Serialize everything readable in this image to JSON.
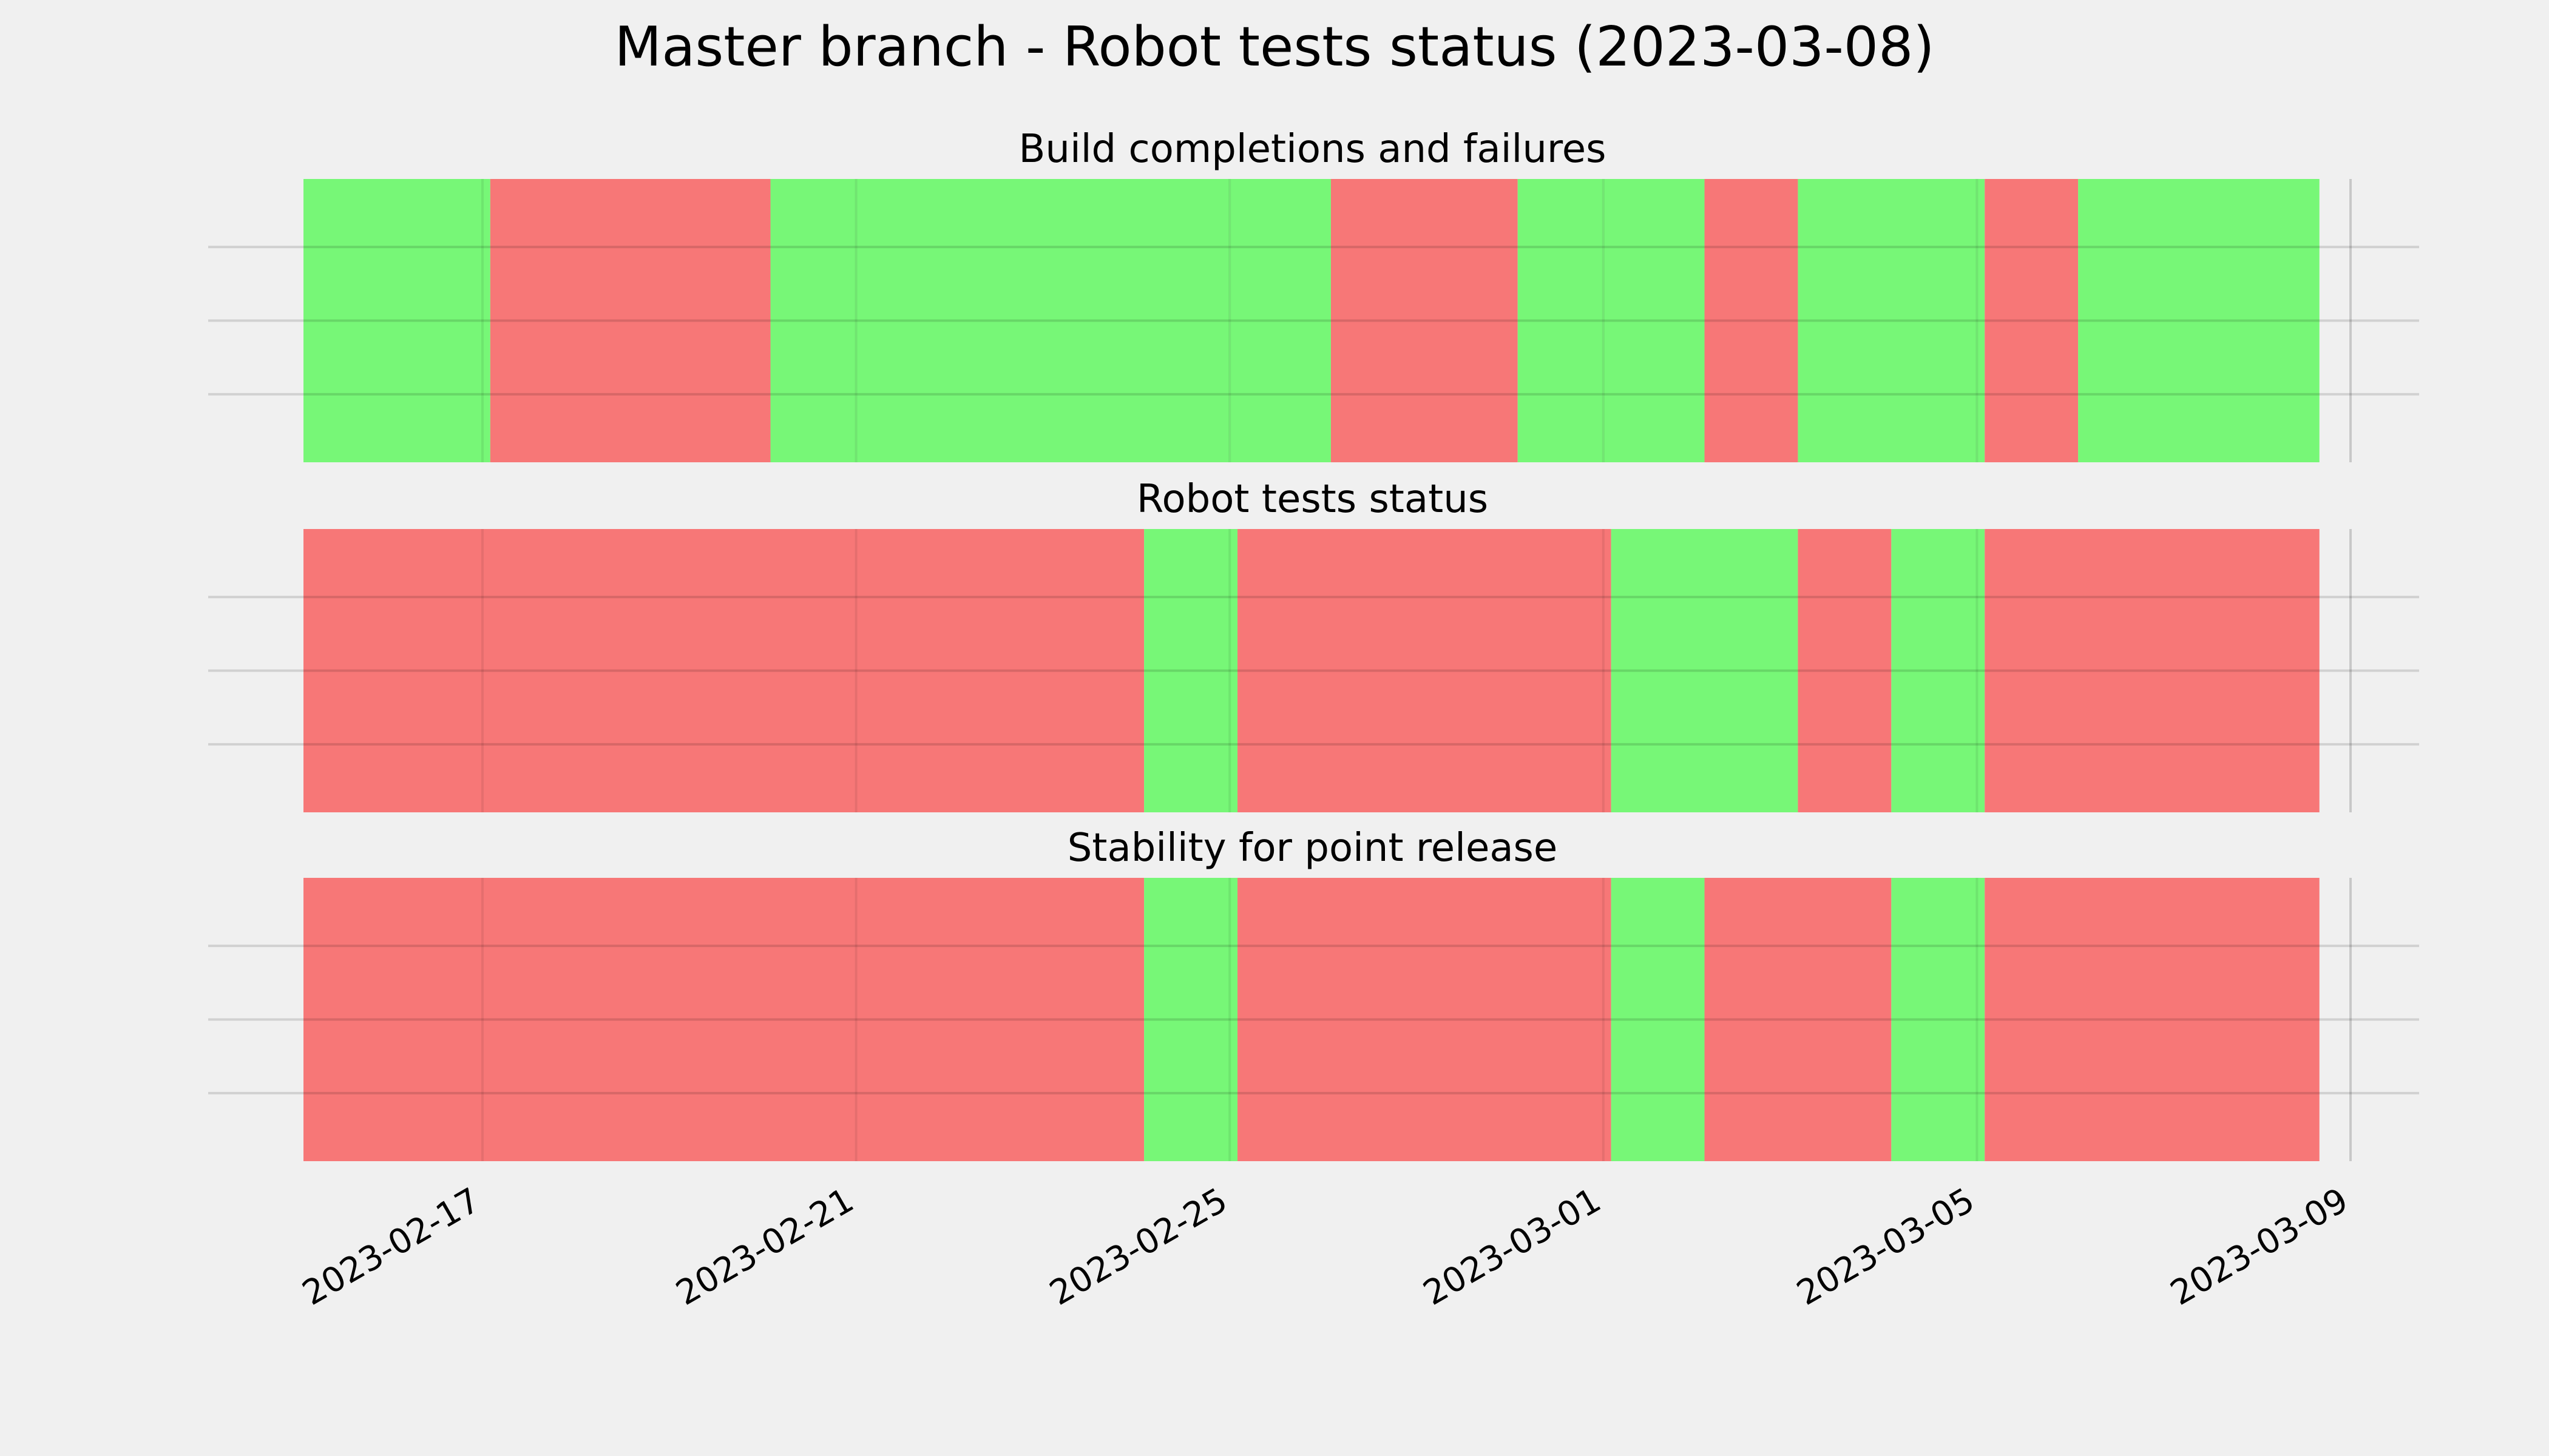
{
  "chart_data": {
    "type": "timeline",
    "title": "Master branch - Robot tests status (2023-03-08)",
    "x_ticks": [
      "2023-02-17",
      "2023-02-21",
      "2023-02-25",
      "2023-03-01",
      "2023-03-05",
      "2023-03-09"
    ],
    "x_range": [
      "2023-02-15T02:00",
      "2023-03-09T08:00"
    ],
    "grid": true,
    "colors": {
      "pass": "#77f777",
      "fail": "#f77777"
    },
    "panels": [
      {
        "title": "Build completions and failures",
        "segments": [
          {
            "start": "2023-02-15T02:00",
            "end": "2023-02-17T00:00",
            "status": "pass"
          },
          {
            "start": "2023-02-17T00:00",
            "end": "2023-02-17T02:00",
            "status": "pass"
          },
          {
            "start": "2023-02-17T02:00",
            "end": "2023-02-20T02:00",
            "status": "fail"
          },
          {
            "start": "2023-02-20T02:00",
            "end": "2023-02-21T00:00",
            "status": "pass"
          },
          {
            "start": "2023-02-21T00:00",
            "end": "2023-02-25T00:00",
            "status": "pass"
          },
          {
            "start": "2023-02-25T00:00",
            "end": "2023-02-26T02:00",
            "status": "pass"
          },
          {
            "start": "2023-02-26T02:00",
            "end": "2023-02-28T02:00",
            "status": "fail"
          },
          {
            "start": "2023-02-28T02:00",
            "end": "2023-03-01T00:00",
            "status": "pass"
          },
          {
            "start": "2023-03-01T00:00",
            "end": "2023-03-02T02:00",
            "status": "pass"
          },
          {
            "start": "2023-03-02T02:00",
            "end": "2023-03-03T02:00",
            "status": "fail"
          },
          {
            "start": "2023-03-03T02:00",
            "end": "2023-03-05T00:00",
            "status": "pass"
          },
          {
            "start": "2023-03-05T00:00",
            "end": "2023-03-05T02:00",
            "status": "pass"
          },
          {
            "start": "2023-03-05T02:00",
            "end": "2023-03-06T02:00",
            "status": "fail"
          },
          {
            "start": "2023-03-06T02:00",
            "end": "2023-03-08T16:00",
            "status": "pass"
          }
        ]
      },
      {
        "title": "Robot tests status",
        "segments": [
          {
            "start": "2023-02-15T02:00",
            "end": "2023-02-24T02:00",
            "status": "fail"
          },
          {
            "start": "2023-02-24T02:00",
            "end": "2023-02-25T02:00",
            "status": "pass"
          },
          {
            "start": "2023-02-25T02:00",
            "end": "2023-03-01T02:00",
            "status": "fail"
          },
          {
            "start": "2023-03-01T02:00",
            "end": "2023-03-03T02:00",
            "status": "pass"
          },
          {
            "start": "2023-03-03T02:00",
            "end": "2023-03-04T02:00",
            "status": "fail"
          },
          {
            "start": "2023-03-04T02:00",
            "end": "2023-03-05T02:00",
            "status": "pass"
          },
          {
            "start": "2023-03-05T02:00",
            "end": "2023-03-08T16:00",
            "status": "fail"
          }
        ]
      },
      {
        "title": "Stability for point release",
        "segments": [
          {
            "start": "2023-02-15T02:00",
            "end": "2023-02-24T02:00",
            "status": "fail"
          },
          {
            "start": "2023-02-24T02:00",
            "end": "2023-02-25T02:00",
            "status": "pass"
          },
          {
            "start": "2023-02-25T02:00",
            "end": "2023-03-01T02:00",
            "status": "fail"
          },
          {
            "start": "2023-03-01T02:00",
            "end": "2023-03-02T02:00",
            "status": "pass"
          },
          {
            "start": "2023-03-02T02:00",
            "end": "2023-03-04T02:00",
            "status": "fail"
          },
          {
            "start": "2023-03-04T02:00",
            "end": "2023-03-05T02:00",
            "status": "pass"
          },
          {
            "start": "2023-03-05T02:00",
            "end": "2023-03-08T16:00",
            "status": "fail"
          }
        ]
      }
    ]
  }
}
